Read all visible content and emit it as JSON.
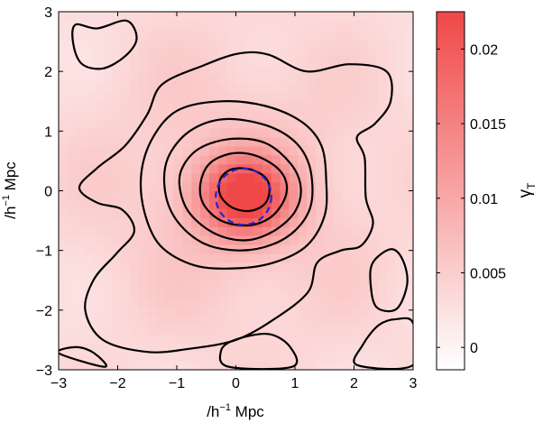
{
  "chart_data": {
    "type": "heatmap",
    "x": {
      "label_prefix": "/h",
      "label_sup": "−1",
      "label_suffix": " Mpc",
      "lim": [
        -3,
        3
      ],
      "ticks": [
        -3,
        -2,
        -1,
        0,
        1,
        2,
        3
      ],
      "tick_labels": [
        "−3",
        "−2",
        "−1",
        "0",
        "1",
        "2",
        "3"
      ]
    },
    "y": {
      "label_prefix": "/h",
      "label_sup": "−1",
      "label_suffix": " Mpc",
      "lim": [
        -3,
        3
      ],
      "ticks": [
        -3,
        -2,
        -1,
        0,
        1,
        2,
        3
      ],
      "tick_labels": [
        "−3",
        "−2",
        "−1",
        "0",
        "1",
        "2",
        "3"
      ]
    },
    "colorbar": {
      "label": "γ",
      "label_sub": "T",
      "range": [
        -0.0015,
        0.0225
      ],
      "ticks": [
        0,
        0.005,
        0.01,
        0.015,
        0.02
      ],
      "tick_labels": [
        "0",
        "0.005",
        "0.01",
        "0.015",
        "0.02"
      ],
      "color_low": "#ffffff",
      "color_high": "#f04848"
    },
    "contour_color": "#000000",
    "contours": [
      [
        [
          0.22,
          -0.34
        ],
        [
          0.48,
          -0.23
        ],
        [
          0.57,
          0.0
        ],
        [
          0.5,
          0.22
        ],
        [
          0.24,
          0.36
        ],
        [
          -0.07,
          0.36
        ],
        [
          -0.26,
          0.2
        ],
        [
          -0.27,
          -0.06
        ],
        [
          -0.08,
          -0.27
        ]
      ],
      [
        [
          0.2,
          -0.58
        ],
        [
          0.58,
          -0.45
        ],
        [
          0.82,
          -0.15
        ],
        [
          0.85,
          0.15
        ],
        [
          0.68,
          0.4
        ],
        [
          0.3,
          0.6
        ],
        [
          -0.1,
          0.62
        ],
        [
          -0.45,
          0.45
        ],
        [
          -0.6,
          0.12
        ],
        [
          -0.55,
          -0.22
        ],
        [
          -0.25,
          -0.5
        ]
      ],
      [
        [
          0.17,
          -0.83
        ],
        [
          0.65,
          -0.67
        ],
        [
          1.0,
          -0.35
        ],
        [
          1.1,
          0.05
        ],
        [
          0.93,
          0.45
        ],
        [
          0.5,
          0.8
        ],
        [
          -0.07,
          0.87
        ],
        [
          -0.6,
          0.72
        ],
        [
          -0.9,
          0.4
        ],
        [
          -0.95,
          0.05
        ],
        [
          -0.78,
          -0.38
        ],
        [
          -0.35,
          -0.72
        ]
      ],
      [
        [
          0.05,
          -1.0
        ],
        [
          0.62,
          -0.9
        ],
        [
          1.05,
          -0.62
        ],
        [
          1.28,
          -0.2
        ],
        [
          1.25,
          0.4
        ],
        [
          1.0,
          0.82
        ],
        [
          0.5,
          1.1
        ],
        [
          -0.2,
          1.2
        ],
        [
          -0.78,
          1.0
        ],
        [
          -1.15,
          0.55
        ],
        [
          -1.2,
          0.0
        ],
        [
          -1.0,
          -0.5
        ],
        [
          -0.55,
          -0.88
        ]
      ],
      [
        [
          0.0,
          -1.3
        ],
        [
          0.65,
          -1.2
        ],
        [
          1.2,
          -0.92
        ],
        [
          1.5,
          -0.42
        ],
        [
          1.53,
          0.15
        ],
        [
          1.45,
          0.75
        ],
        [
          1.12,
          1.15
        ],
        [
          0.5,
          1.42
        ],
        [
          -0.25,
          1.5
        ],
        [
          -0.98,
          1.35
        ],
        [
          -1.4,
          0.9
        ],
        [
          -1.6,
          0.3
        ],
        [
          -1.55,
          -0.35
        ],
        [
          -1.28,
          -0.92
        ],
        [
          -0.7,
          -1.25
        ]
      ],
      [
        [
          -0.8,
          -2.65
        ],
        [
          0.0,
          -2.5
        ],
        [
          0.65,
          -2.15
        ],
        [
          1.22,
          -1.7
        ],
        [
          1.38,
          -1.2
        ],
        [
          1.78,
          -1.0
        ],
        [
          2.12,
          -0.92
        ],
        [
          2.32,
          -0.55
        ],
        [
          2.2,
          -0.12
        ],
        [
          2.18,
          0.55
        ],
        [
          2.05,
          0.9
        ],
        [
          2.35,
          1.12
        ],
        [
          2.62,
          1.5
        ],
        [
          2.55,
          2.0
        ],
        [
          1.92,
          2.12
        ],
        [
          1.2,
          2.0
        ],
        [
          0.55,
          2.28
        ],
        [
          0.05,
          2.3
        ],
        [
          -0.55,
          2.1
        ],
        [
          -1.25,
          1.78
        ],
        [
          -1.5,
          1.28
        ],
        [
          -1.88,
          0.75
        ],
        [
          -2.35,
          0.38
        ],
        [
          -2.65,
          0.05
        ],
        [
          -2.35,
          -0.2
        ],
        [
          -1.92,
          -0.32
        ],
        [
          -1.72,
          -0.68
        ],
        [
          -2.02,
          -1.05
        ],
        [
          -2.4,
          -1.48
        ],
        [
          -2.55,
          -2.0
        ],
        [
          -2.25,
          -2.5
        ],
        [
          -1.5,
          -2.7
        ]
      ],
      [
        [
          -2.72,
          2.78
        ],
        [
          -2.35,
          2.72
        ],
        [
          -1.85,
          2.85
        ],
        [
          -1.68,
          2.55
        ],
        [
          -1.88,
          2.25
        ],
        [
          -2.25,
          2.05
        ],
        [
          -2.6,
          2.12
        ],
        [
          -2.75,
          2.45
        ]
      ],
      [
        [
          2.32,
          -1.2
        ],
        [
          2.62,
          -0.98
        ],
        [
          2.82,
          -1.15
        ],
        [
          2.9,
          -1.55
        ],
        [
          2.72,
          -1.98
        ],
        [
          2.38,
          -1.95
        ],
        [
          2.28,
          -1.55
        ]
      ],
      [
        [
          -0.12,
          -2.95
        ],
        [
          -0.25,
          -2.68
        ],
        [
          -0.02,
          -2.5
        ],
        [
          0.55,
          -2.4
        ],
        [
          0.92,
          -2.62
        ],
        [
          0.95,
          -2.95
        ]
      ],
      [
        [
          2.05,
          -2.92
        ],
        [
          2.15,
          -2.58
        ],
        [
          2.42,
          -2.25
        ],
        [
          2.72,
          -2.15
        ],
        [
          3.0,
          -2.22
        ],
        [
          3.0,
          -2.92
        ]
      ],
      [
        [
          -3.0,
          -2.72
        ],
        [
          -2.7,
          -2.62
        ],
        [
          -2.4,
          -2.72
        ],
        [
          -2.22,
          -2.95
        ]
      ]
    ],
    "overlay_circle": {
      "center": [
        0.13,
        -0.1
      ],
      "radius": 0.47,
      "color": "#2222dd",
      "style": "dashed"
    },
    "title": "",
    "grid": false
  }
}
